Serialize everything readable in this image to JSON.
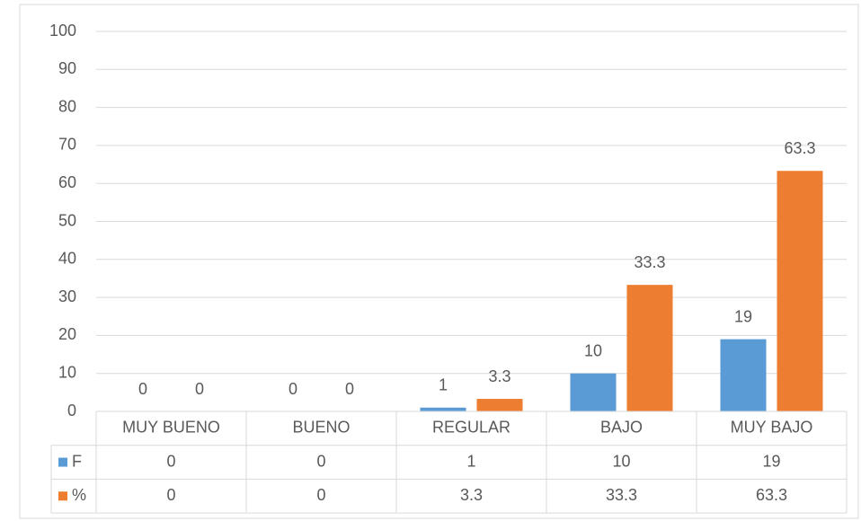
{
  "chart_data": {
    "type": "bar",
    "categories": [
      "MUY BUENO",
      "BUENO",
      "REGULAR",
      "BAJO",
      "MUY BAJO"
    ],
    "series": [
      {
        "name": "F",
        "color": "#5b9bd5",
        "values": [
          0,
          0,
          1,
          10,
          19
        ]
      },
      {
        "name": "%",
        "color": "#ed7d31",
        "values": [
          0,
          0,
          3.3,
          33.3,
          63.3
        ]
      }
    ],
    "ylim": [
      0,
      100
    ],
    "yticks": [
      0,
      10,
      20,
      30,
      40,
      50,
      60,
      70,
      80,
      90,
      100
    ],
    "grid": true,
    "data_table": true
  }
}
